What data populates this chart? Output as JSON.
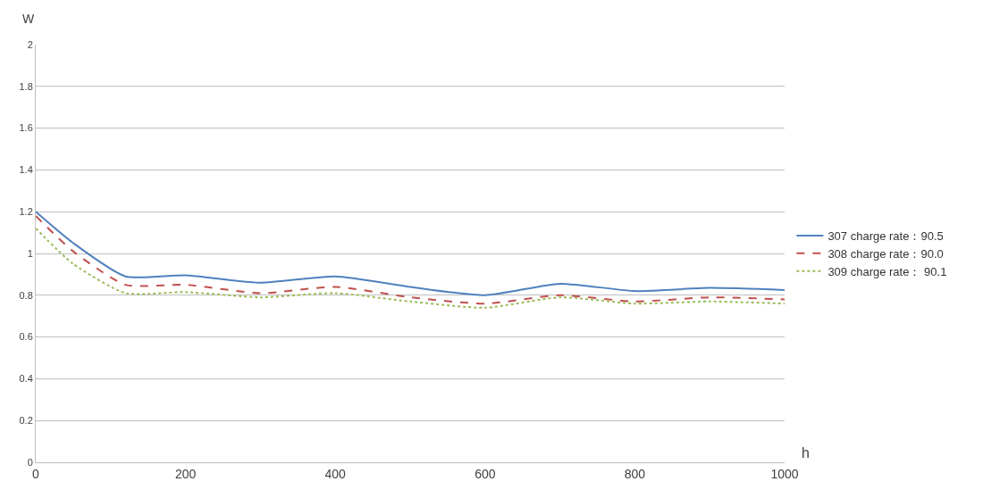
{
  "chart_data": {
    "type": "line",
    "xlabel": "h",
    "ylabel": "W",
    "x": [
      0,
      50,
      120,
      200,
      300,
      400,
      500,
      600,
      700,
      800,
      900,
      1000
    ],
    "series": [
      {
        "name": "307 charge rate：90.5",
        "color": "#4f81bd",
        "line_style": "solid",
        "values": [
          1.2,
          1.05,
          0.89,
          0.895,
          0.86,
          0.89,
          0.84,
          0.8,
          0.855,
          0.82,
          0.835,
          0.825
        ]
      },
      {
        "name": "308 charge rate：90.0",
        "color": "#c0504d",
        "line_style": "dashed",
        "values": [
          1.18,
          1.01,
          0.85,
          0.85,
          0.81,
          0.84,
          0.79,
          0.76,
          0.8,
          0.77,
          0.79,
          0.78
        ]
      },
      {
        "name": "309 charge rate： 90.1",
        "color": "#9bbb59",
        "line_style": "dotted",
        "values": [
          1.12,
          0.95,
          0.81,
          0.815,
          0.79,
          0.81,
          0.77,
          0.74,
          0.79,
          0.76,
          0.77,
          0.76
        ]
      }
    ],
    "xlim": [
      0,
      1000
    ],
    "xticks": [
      0,
      200,
      400,
      600,
      800,
      1000
    ],
    "ylim": [
      0,
      2
    ],
    "yticks": [
      0,
      0.2,
      0.4,
      0.6,
      0.8,
      1,
      1.2,
      1.4,
      1.6,
      1.8,
      2
    ],
    "grid": "y",
    "legend": "right",
    "marker": "none"
  }
}
